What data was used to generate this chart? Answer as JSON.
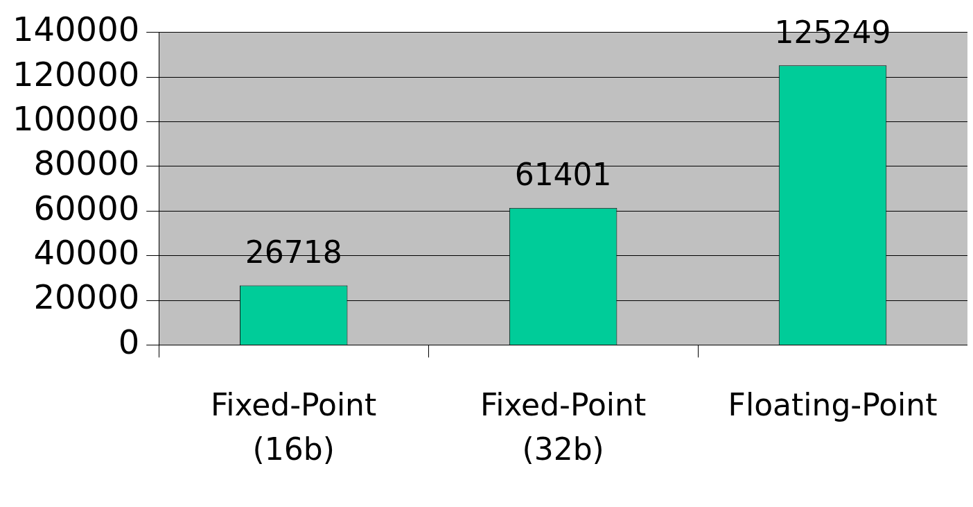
{
  "chart_data": {
    "type": "bar",
    "categories": [
      "Fixed-Point (16b)",
      "Fixed-Point (32b)",
      "Floating-Point"
    ],
    "values": [
      26718,
      61401,
      125249
    ],
    "color": "#00cc99",
    "ylim": [
      0,
      140000
    ],
    "yticks": [
      0,
      20000,
      40000,
      60000,
      80000,
      100000,
      120000,
      140000
    ],
    "grid": "y",
    "data_labels": true,
    "legend": false
  }
}
